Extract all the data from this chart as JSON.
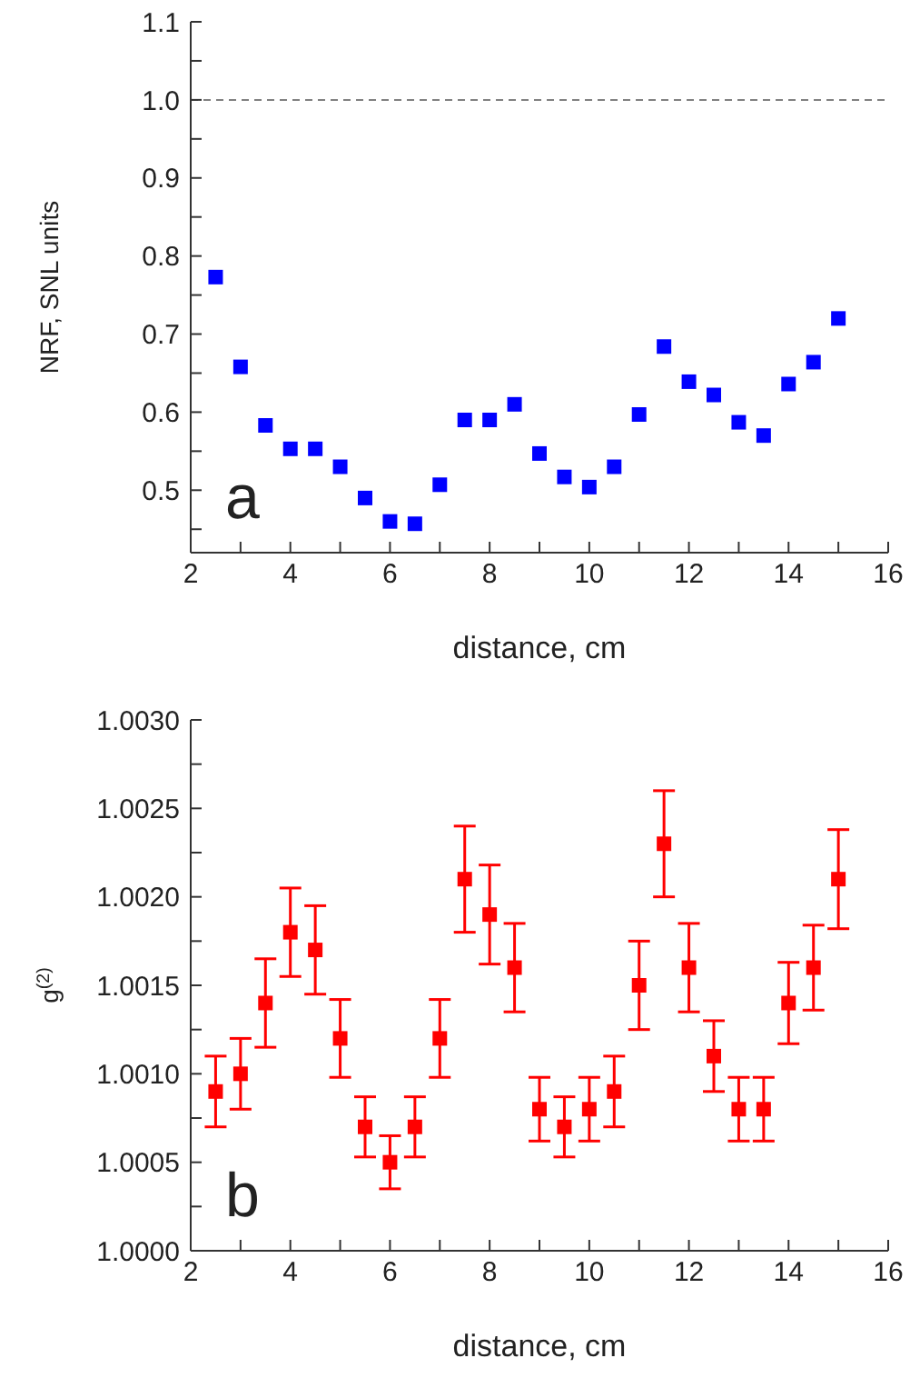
{
  "chart_data": [
    {
      "type": "scatter",
      "marker": "square",
      "color": "#0000ff",
      "xlabel": "distance, cm",
      "ylabel": "NRF, SNL units",
      "annotations": [
        "a"
      ],
      "grid": false,
      "x": [
        2.5,
        3,
        3.5,
        4,
        4.5,
        5,
        5.5,
        6,
        6.5,
        7,
        7.5,
        8,
        8.5,
        9,
        9.5,
        10,
        10.5,
        11,
        11.5,
        12,
        12.5,
        13,
        13.5,
        14,
        14.5,
        15
      ],
      "values": [
        0.773,
        0.658,
        0.583,
        0.553,
        0.553,
        0.53,
        0.49,
        0.46,
        0.457,
        0.507,
        0.59,
        0.59,
        0.61,
        0.547,
        0.517,
        0.504,
        0.53,
        0.597,
        0.684,
        0.639,
        0.622,
        0.587,
        0.57,
        0.636,
        0.664,
        0.72
      ],
      "xlim": [
        2,
        16
      ],
      "xticks": [
        2,
        {
          "value": 3,
          "label": null
        },
        4,
        {
          "value": 5,
          "label": null
        },
        6,
        {
          "value": 7,
          "label": null
        },
        8,
        {
          "value": 9,
          "label": null
        },
        10,
        {
          "value": 11,
          "label": null
        },
        12,
        {
          "value": 13,
          "label": null
        },
        14,
        {
          "value": 15,
          "label": null
        },
        16
      ],
      "ylim": [
        0.42,
        1.1
      ],
      "yticks": [
        {
          "value": 0.45,
          "label": null
        },
        0.5,
        {
          "value": 0.55,
          "label": null
        },
        0.6,
        {
          "value": 0.65,
          "label": null
        },
        0.7,
        {
          "value": 0.75,
          "label": null
        },
        0.8,
        {
          "value": 0.85,
          "label": null
        },
        0.9,
        {
          "value": 0.95,
          "label": null
        },
        {
          "value": 1,
          "label": "1.0"
        },
        {
          "value": 1.05,
          "label": null
        },
        1.1
      ],
      "ref_lines": [
        {
          "axis": "y",
          "value": 1,
          "label": null,
          "color": "#808080",
          "line_style": "dashed"
        }
      ]
    },
    {
      "type": "scatter",
      "marker": "square",
      "color": "#ff0000",
      "xlabel": "distance, cm",
      "ylabel": "g$^{(2)}$",
      "annotations": [
        "b"
      ],
      "grid": false,
      "x": [
        2.5,
        3,
        3.5,
        4,
        4.5,
        5,
        5.5,
        6,
        6.5,
        7,
        7.5,
        8,
        8.5,
        9,
        9.5,
        10,
        10.5,
        11,
        11.5,
        12,
        12.5,
        13,
        13.5,
        14,
        14.5,
        15
      ],
      "values": [
        1.0009,
        1.001,
        1.0014,
        1.0018,
        1.0017,
        1.0012,
        1.0007,
        1.0005,
        1.0007,
        1.0012,
        1.0021,
        1.0019,
        1.0016,
        1.0008,
        1.0007,
        1.0008,
        1.0009,
        1.0015,
        1.0023,
        1.0016,
        1.0011,
        1.0008,
        1.0008,
        1.0014,
        1.0016,
        1.0021
      ],
      "errors": [
        0.0002,
        0.0002,
        0.00025,
        0.00025,
        0.00025,
        0.00022,
        0.00017,
        0.00015,
        0.00017,
        0.00022,
        0.0003,
        0.00028,
        0.00025,
        0.00018,
        0.00017,
        0.00018,
        0.0002,
        0.00025,
        0.0003,
        0.00025,
        0.0002,
        0.00018,
        0.00018,
        0.00023,
        0.00024,
        0.00028
      ],
      "xlim": [
        2,
        16
      ],
      "xticks": [
        2,
        {
          "value": 3,
          "label": null
        },
        4,
        {
          "value": 5,
          "label": null
        },
        6,
        {
          "value": 7,
          "label": null
        },
        8,
        {
          "value": 9,
          "label": null
        },
        10,
        {
          "value": 11,
          "label": null
        },
        12,
        {
          "value": 13,
          "label": null
        },
        14,
        {
          "value": 15,
          "label": null
        },
        16
      ],
      "ylim": [
        1,
        1.003
      ],
      "yticks": [
        {
          "value": 1,
          "label": "1.0000"
        },
        {
          "value": 1.00025,
          "label": null
        },
        {
          "value": 1.0005,
          "label": "1.0005"
        },
        {
          "value": 1.00075,
          "label": null
        },
        {
          "value": 1.001,
          "label": "1.0010"
        },
        {
          "value": 1.00125,
          "label": null
        },
        {
          "value": 1.0015,
          "label": "1.0015"
        },
        {
          "value": 1.00175,
          "label": null
        },
        {
          "value": 1.002,
          "label": "1.0020"
        },
        {
          "value": 1.00225,
          "label": null
        },
        {
          "value": 1.0025,
          "label": "1.0025"
        },
        {
          "value": 1.00275,
          "label": null
        },
        {
          "value": 1.003,
          "label": "1.0030"
        }
      ]
    }
  ]
}
